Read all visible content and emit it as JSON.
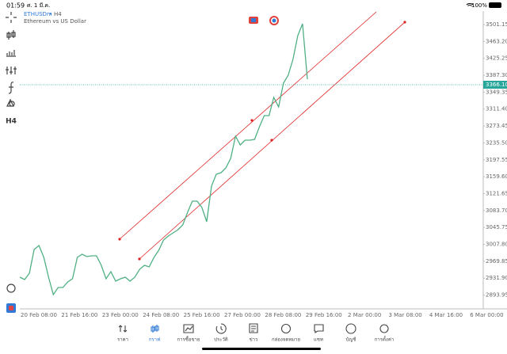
{
  "status_bar": {
    "time": "01:59",
    "date": "ศ. 1 มี.ค.",
    "battery": "100%"
  },
  "symbol": {
    "name": "ETHUSDm",
    "separator": "•",
    "timeframe": "H4",
    "description": "Ethereum vs US Dollar"
  },
  "toolbar": {
    "timeframe": "H4"
  },
  "chart_data": {
    "type": "line",
    "series": [
      {
        "name": "ETHUSDm",
        "color": "#4fb083",
        "values": [
          2934.1,
          2928.8,
          2943.0,
          2996.3,
          3005.2,
          2978.6,
          2934.1,
          2895.0,
          2911.0,
          2911.0,
          2923.4,
          2930.6,
          2978.6,
          2985.7,
          2980.3,
          2982.1,
          2982.1,
          2960.8,
          2930.6,
          2946.6,
          2925.3,
          2930.6,
          2934.1,
          2925.3,
          2934.1,
          2951.9,
          2960.8,
          2957.2,
          2978.6,
          2994.6,
          3017.7,
          3026.6,
          3033.7,
          3040.8,
          3051.4,
          3079.9,
          3104.8,
          3104.8,
          3090.5,
          3058.6,
          3138.5,
          3165.2,
          3168.8,
          3179.4,
          3200.8,
          3250.5,
          3231.0,
          3241.6,
          3241.6,
          3243.4,
          3271.9,
          3296.7,
          3296.7,
          3337.6,
          3316.3,
          3369.6,
          3387.4,
          3422.9,
          3476.3,
          3502.9,
          3378.5
        ]
      }
    ],
    "ylim": [
      2863.0,
      3529.6
    ],
    "yticks": [
      {
        "value": 3501.15,
        "label": "3501.15"
      },
      {
        "value": 3463.2,
        "label": "3463.20"
      },
      {
        "value": 3425.25,
        "label": "3425.25"
      },
      {
        "value": 3387.3,
        "label": "3387.30"
      },
      {
        "value": 3349.35,
        "label": "3349.35"
      },
      {
        "value": 3311.4,
        "label": "3311.40"
      },
      {
        "value": 3273.45,
        "label": "3273.45"
      },
      {
        "value": 3235.5,
        "label": "3235.50"
      },
      {
        "value": 3197.55,
        "label": "3197.55"
      },
      {
        "value": 3159.6,
        "label": "3159.60"
      },
      {
        "value": 3121.65,
        "label": "3121.65"
      },
      {
        "value": 3083.7,
        "label": "3083.70"
      },
      {
        "value": 3045.75,
        "label": "3045.75"
      },
      {
        "value": 3007.8,
        "label": "3007.80"
      },
      {
        "value": 2969.85,
        "label": "2969.85"
      },
      {
        "value": 2931.9,
        "label": "2931.90"
      },
      {
        "value": 2893.95,
        "label": "2893.95"
      }
    ],
    "current_price": {
      "value": 3366.1,
      "label": "3366.10"
    },
    "xtick_labels": [
      "20 Feb 08:00",
      "21 Feb 16:00",
      "23 Feb 00:00",
      "24 Feb 08:00",
      "25 Feb 16:00",
      "27 Feb 00:00",
      "28 Feb 08:00",
      "29 Feb 16:00",
      "2 Mar 00:00",
      "3 Mar 08:00",
      "4 Mar 16:00",
      "6 Mar 00:00"
    ]
  },
  "nav": {
    "items": [
      "ราคา",
      "กราฟ",
      "การซื้อขาย",
      "ประวัติ",
      "ข่าว",
      "กล่องจดหมาย",
      "แชท",
      "บัญชี",
      "การตั้งค่า"
    ],
    "active": 1
  }
}
